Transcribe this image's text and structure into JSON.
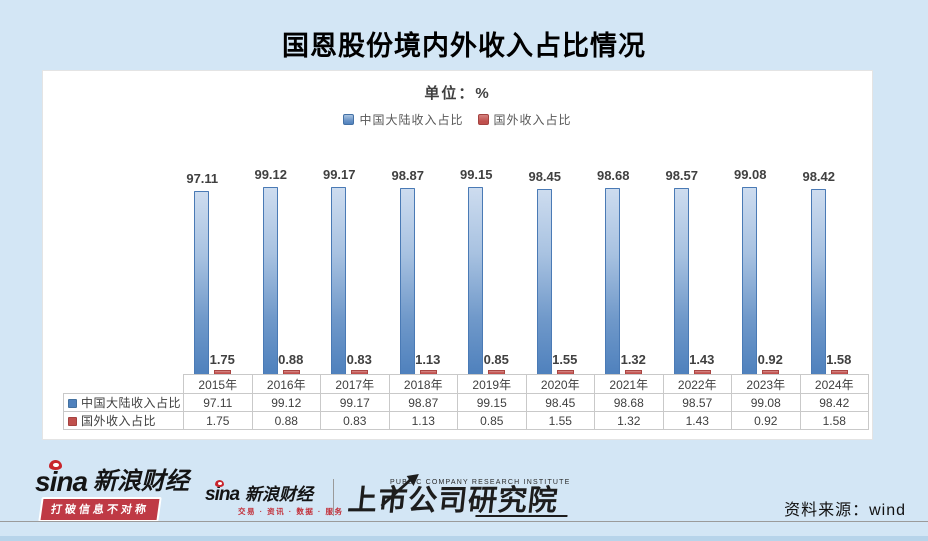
{
  "title": "国恩股份境内外收入占比情况",
  "chart": {
    "unit_label": "单位：%",
    "legend": [
      {
        "label": "中国大陆收入占比",
        "color": "#4f81bd"
      },
      {
        "label": "国外收入占比",
        "color": "#c0504d"
      }
    ]
  },
  "chart_data": {
    "type": "bar",
    "title": "国恩股份境内外收入占比情况",
    "xlabel": "",
    "ylabel": "单位：%",
    "ylim": [
      0,
      100
    ],
    "grid": false,
    "legend_position": "top-center",
    "show_data_table": true,
    "categories": [
      "2015年",
      "2016年",
      "2017年",
      "2018年",
      "2019年",
      "2020年",
      "2021年",
      "2022年",
      "2023年",
      "2024年"
    ],
    "series": [
      {
        "name": "中国大陆收入占比",
        "color": "#4f81bd",
        "values": [
          97.11,
          99.12,
          99.17,
          98.87,
          99.15,
          98.45,
          98.68,
          98.57,
          99.08,
          98.42
        ]
      },
      {
        "name": "国外收入占比",
        "color": "#c0504d",
        "values": [
          1.75,
          0.88,
          0.83,
          1.13,
          0.85,
          1.55,
          1.32,
          1.43,
          0.92,
          1.58
        ]
      }
    ]
  },
  "footer": {
    "sina_word": "sina",
    "sina_brand": "新浪财经",
    "sina_badge": "打破信息不对称",
    "sina_subtitle": "交易 · 资讯 · 数据 · 服务",
    "institute_en": "PUBLIC COMPANY RESEARCH INSTITUTE",
    "institute_cn": "上市公司研究院",
    "source_label": "资料来源：wind"
  }
}
